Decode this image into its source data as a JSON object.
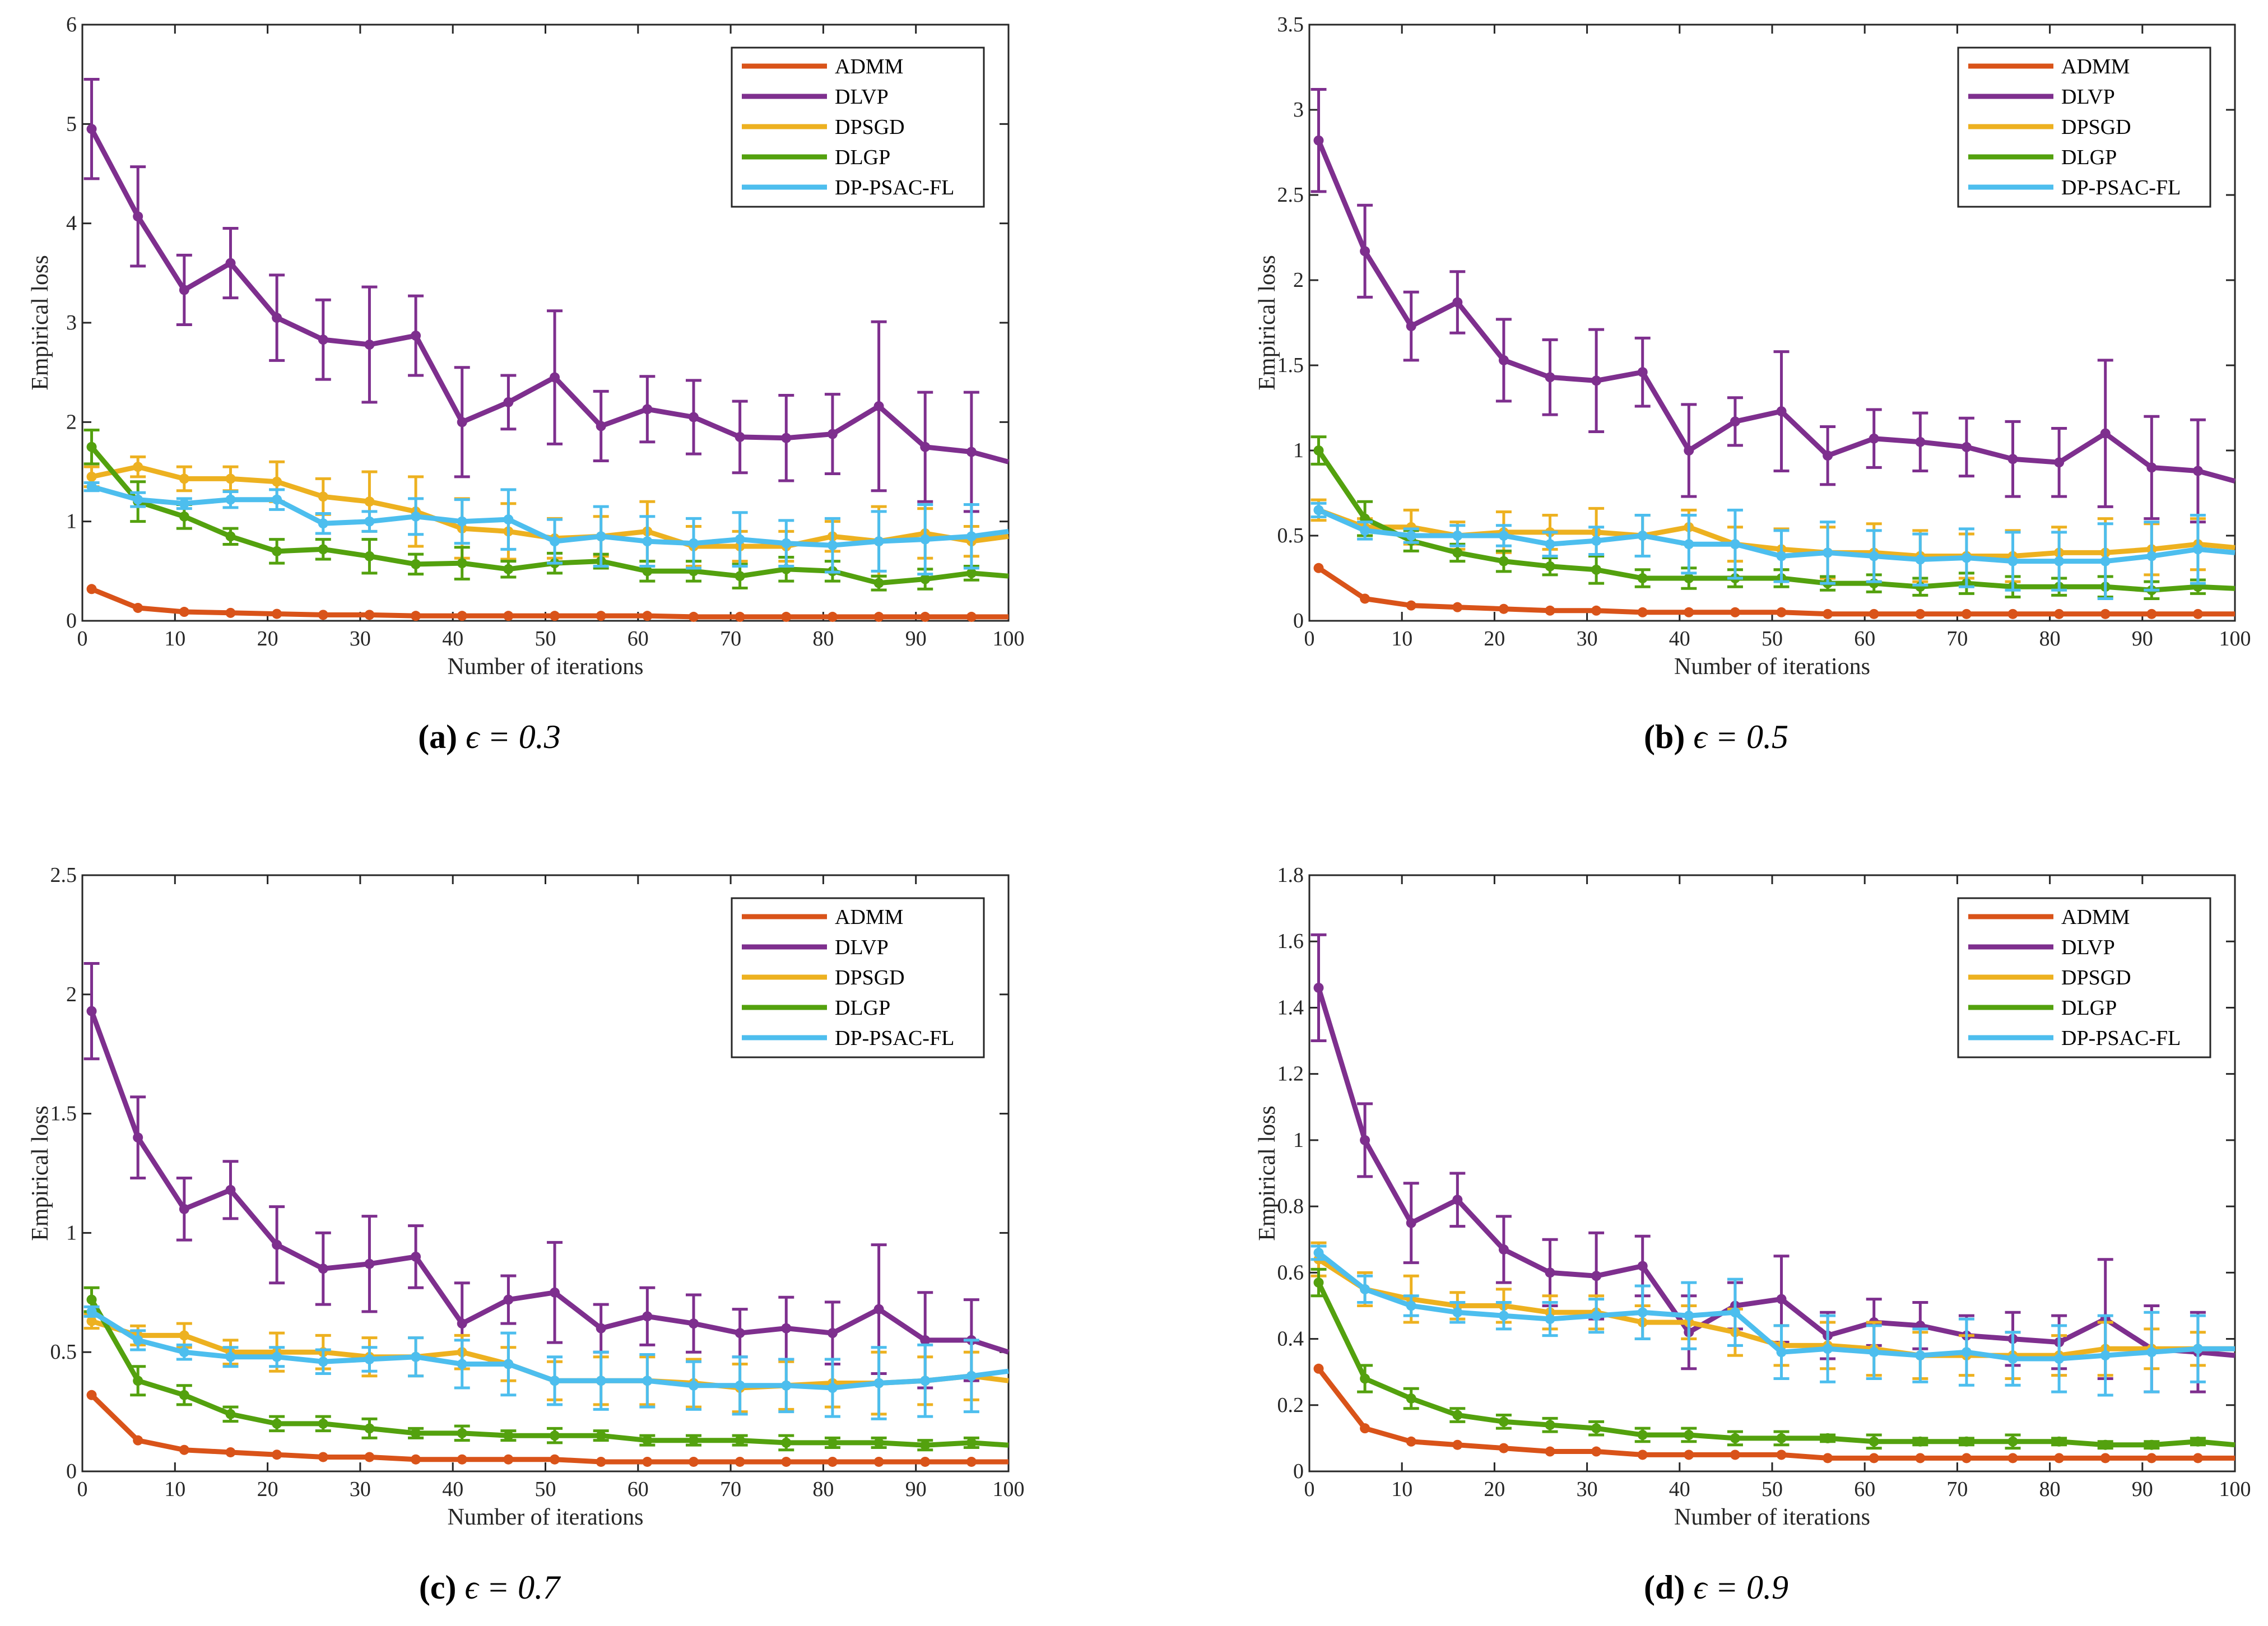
{
  "colors": {
    "ADMM": "#D95319",
    "DLVP": "#7E2F8E",
    "DPSGD": "#EDB120",
    "DLGP": "#53A10E",
    "DP-PSAC-FL": "#4DBEEE"
  },
  "chart_data": [
    {
      "type": "line",
      "panel": "a",
      "caption_label": "(a)",
      "caption_text": "ϵ = 0.3",
      "xlabel": "Number of iterations",
      "ylabel": "Empirical loss",
      "xlim": [
        0,
        100
      ],
      "ylim": [
        0,
        6
      ],
      "xticks": [
        0,
        10,
        20,
        30,
        40,
        50,
        60,
        70,
        80,
        90,
        100
      ],
      "yticks": [
        0,
        1,
        2,
        3,
        4,
        5,
        6
      ],
      "legend": "top-right",
      "x": [
        1,
        6,
        11,
        16,
        21,
        26,
        31,
        36,
        41,
        46,
        51,
        56,
        61,
        66,
        71,
        76,
        81,
        86,
        91,
        96,
        100
      ],
      "series": [
        {
          "name": "ADMM",
          "values": [
            0.32,
            0.13,
            0.09,
            0.08,
            0.07,
            0.06,
            0.06,
            0.05,
            0.05,
            0.05,
            0.05,
            0.05,
            0.05,
            0.04,
            0.04,
            0.04,
            0.04,
            0.04,
            0.04,
            0.04,
            0.04
          ],
          "err": []
        },
        {
          "name": "DLVP",
          "values": [
            4.95,
            4.07,
            3.33,
            3.6,
            3.05,
            2.83,
            2.78,
            2.87,
            2.0,
            2.2,
            2.45,
            1.96,
            2.13,
            2.05,
            1.85,
            1.84,
            1.88,
            2.16,
            1.75,
            1.7,
            1.6
          ],
          "err": [
            0.5,
            0.5,
            0.35,
            0.35,
            0.43,
            0.4,
            0.58,
            0.4,
            0.55,
            0.27,
            0.67,
            0.35,
            0.33,
            0.37,
            0.36,
            0.43,
            0.4,
            0.85,
            0.55,
            0.6
          ]
        },
        {
          "name": "DPSGD",
          "values": [
            1.45,
            1.55,
            1.43,
            1.43,
            1.4,
            1.25,
            1.2,
            1.1,
            0.93,
            0.9,
            0.83,
            0.85,
            0.9,
            0.75,
            0.75,
            0.75,
            0.85,
            0.8,
            0.88,
            0.8,
            0.85
          ],
          "err": [
            0.1,
            0.1,
            0.12,
            0.12,
            0.2,
            0.18,
            0.3,
            0.35,
            0.3,
            0.28,
            0.2,
            0.2,
            0.3,
            0.2,
            0.15,
            0.15,
            0.15,
            0.35,
            0.25,
            0.15
          ]
        },
        {
          "name": "DLGP",
          "values": [
            1.75,
            1.2,
            1.05,
            0.85,
            0.7,
            0.72,
            0.65,
            0.57,
            0.58,
            0.52,
            0.58,
            0.6,
            0.5,
            0.5,
            0.45,
            0.52,
            0.5,
            0.38,
            0.42,
            0.48,
            0.45
          ],
          "err": [
            0.17,
            0.2,
            0.12,
            0.08,
            0.12,
            0.1,
            0.17,
            0.1,
            0.16,
            0.08,
            0.1,
            0.07,
            0.1,
            0.1,
            0.12,
            0.12,
            0.1,
            0.07,
            0.1,
            0.07
          ]
        },
        {
          "name": "DP-PSAC-FL",
          "values": [
            1.35,
            1.22,
            1.18,
            1.22,
            1.22,
            0.98,
            1.0,
            1.05,
            1.0,
            1.02,
            0.8,
            0.85,
            0.8,
            0.78,
            0.82,
            0.78,
            0.76,
            0.8,
            0.82,
            0.85,
            0.9
          ],
          "err": [
            0.04,
            0.07,
            0.05,
            0.08,
            0.1,
            0.1,
            0.1,
            0.18,
            0.22,
            0.3,
            0.22,
            0.3,
            0.25,
            0.25,
            0.27,
            0.23,
            0.27,
            0.3,
            0.35,
            0.32
          ]
        }
      ]
    },
    {
      "type": "line",
      "panel": "b",
      "caption_label": "(b)",
      "caption_text": "ϵ = 0.5",
      "xlabel": "Number of iterations",
      "ylabel": "Empirical loss",
      "xlim": [
        0,
        100
      ],
      "ylim": [
        0,
        3.5
      ],
      "xticks": [
        0,
        10,
        20,
        30,
        40,
        50,
        60,
        70,
        80,
        90,
        100
      ],
      "yticks": [
        0,
        0.5,
        1,
        1.5,
        2,
        2.5,
        3,
        3.5
      ],
      "legend": "top-right",
      "x": [
        1,
        6,
        11,
        16,
        21,
        26,
        31,
        36,
        41,
        46,
        51,
        56,
        61,
        66,
        71,
        76,
        81,
        86,
        91,
        96,
        100
      ],
      "series": [
        {
          "name": "ADMM",
          "values": [
            0.31,
            0.13,
            0.09,
            0.08,
            0.07,
            0.06,
            0.06,
            0.05,
            0.05,
            0.05,
            0.05,
            0.04,
            0.04,
            0.04,
            0.04,
            0.04,
            0.04,
            0.04,
            0.04,
            0.04,
            0.04
          ],
          "err": []
        },
        {
          "name": "DLVP",
          "values": [
            2.82,
            2.17,
            1.73,
            1.87,
            1.53,
            1.43,
            1.41,
            1.46,
            1.0,
            1.17,
            1.23,
            0.97,
            1.07,
            1.05,
            1.02,
            0.95,
            0.93,
            1.1,
            0.9,
            0.88,
            0.82
          ],
          "err": [
            0.3,
            0.27,
            0.2,
            0.18,
            0.24,
            0.22,
            0.3,
            0.2,
            0.27,
            0.14,
            0.35,
            0.17,
            0.17,
            0.17,
            0.17,
            0.22,
            0.2,
            0.43,
            0.3,
            0.3
          ]
        },
        {
          "name": "DPSGD",
          "values": [
            0.65,
            0.55,
            0.55,
            0.5,
            0.52,
            0.52,
            0.52,
            0.5,
            0.55,
            0.45,
            0.42,
            0.4,
            0.4,
            0.38,
            0.38,
            0.38,
            0.4,
            0.4,
            0.42,
            0.45,
            0.43
          ],
          "err": [
            0.06,
            0.05,
            0.1,
            0.08,
            0.12,
            0.1,
            0.14,
            0.12,
            0.1,
            0.1,
            0.12,
            0.15,
            0.17,
            0.15,
            0.13,
            0.15,
            0.15,
            0.2,
            0.15,
            0.15
          ]
        },
        {
          "name": "DLGP",
          "values": [
            1.0,
            0.6,
            0.47,
            0.4,
            0.35,
            0.32,
            0.3,
            0.25,
            0.25,
            0.25,
            0.25,
            0.22,
            0.22,
            0.2,
            0.22,
            0.2,
            0.2,
            0.2,
            0.18,
            0.2,
            0.19
          ],
          "err": [
            0.08,
            0.1,
            0.06,
            0.05,
            0.06,
            0.05,
            0.08,
            0.05,
            0.06,
            0.05,
            0.05,
            0.04,
            0.05,
            0.05,
            0.06,
            0.06,
            0.05,
            0.06,
            0.05,
            0.04
          ]
        },
        {
          "name": "DP-PSAC-FL",
          "values": [
            0.65,
            0.53,
            0.5,
            0.5,
            0.5,
            0.45,
            0.47,
            0.5,
            0.45,
            0.45,
            0.38,
            0.4,
            0.38,
            0.36,
            0.37,
            0.35,
            0.35,
            0.35,
            0.38,
            0.42,
            0.4
          ],
          "err": [
            0.04,
            0.05,
            0.04,
            0.06,
            0.06,
            0.07,
            0.08,
            0.12,
            0.17,
            0.2,
            0.15,
            0.18,
            0.15,
            0.15,
            0.17,
            0.17,
            0.17,
            0.22,
            0.2,
            0.2
          ]
        }
      ]
    },
    {
      "type": "line",
      "panel": "c",
      "caption_label": "(c)",
      "caption_text": "ϵ = 0.7",
      "xlabel": "Number of iterations",
      "ylabel": "Empirical loss",
      "xlim": [
        0,
        100
      ],
      "ylim": [
        0,
        2.5
      ],
      "xticks": [
        0,
        10,
        20,
        30,
        40,
        50,
        60,
        70,
        80,
        90,
        100
      ],
      "yticks": [
        0,
        0.5,
        1,
        1.5,
        2,
        2.5
      ],
      "legend": "top-right",
      "x": [
        1,
        6,
        11,
        16,
        21,
        26,
        31,
        36,
        41,
        46,
        51,
        56,
        61,
        66,
        71,
        76,
        81,
        86,
        91,
        96,
        100
      ],
      "series": [
        {
          "name": "ADMM",
          "values": [
            0.32,
            0.13,
            0.09,
            0.08,
            0.07,
            0.06,
            0.06,
            0.05,
            0.05,
            0.05,
            0.05,
            0.04,
            0.04,
            0.04,
            0.04,
            0.04,
            0.04,
            0.04,
            0.04,
            0.04,
            0.04
          ],
          "err": []
        },
        {
          "name": "DLVP",
          "values": [
            1.93,
            1.4,
            1.1,
            1.18,
            0.95,
            0.85,
            0.87,
            0.9,
            0.62,
            0.72,
            0.75,
            0.6,
            0.65,
            0.62,
            0.58,
            0.6,
            0.58,
            0.68,
            0.55,
            0.55,
            0.5
          ],
          "err": [
            0.2,
            0.17,
            0.13,
            0.12,
            0.16,
            0.15,
            0.2,
            0.13,
            0.17,
            0.1,
            0.21,
            0.1,
            0.12,
            0.12,
            0.1,
            0.13,
            0.13,
            0.27,
            0.2,
            0.17
          ]
        },
        {
          "name": "DPSGD",
          "values": [
            0.63,
            0.57,
            0.57,
            0.5,
            0.5,
            0.5,
            0.48,
            0.48,
            0.5,
            0.45,
            0.38,
            0.38,
            0.38,
            0.37,
            0.35,
            0.36,
            0.37,
            0.37,
            0.38,
            0.4,
            0.38
          ],
          "err": [
            0.03,
            0.04,
            0.05,
            0.05,
            0.08,
            0.07,
            0.08,
            0.08,
            0.07,
            0.07,
            0.08,
            0.1,
            0.1,
            0.1,
            0.1,
            0.1,
            0.1,
            0.13,
            0.1,
            0.1
          ]
        },
        {
          "name": "DLGP",
          "values": [
            0.72,
            0.38,
            0.32,
            0.24,
            0.2,
            0.2,
            0.18,
            0.16,
            0.16,
            0.15,
            0.15,
            0.15,
            0.13,
            0.13,
            0.13,
            0.12,
            0.12,
            0.12,
            0.11,
            0.12,
            0.11
          ],
          "err": [
            0.05,
            0.06,
            0.04,
            0.03,
            0.03,
            0.03,
            0.04,
            0.02,
            0.03,
            0.02,
            0.03,
            0.02,
            0.02,
            0.02,
            0.02,
            0.03,
            0.02,
            0.02,
            0.02,
            0.02
          ]
        },
        {
          "name": "DP-PSAC-FL",
          "values": [
            0.67,
            0.55,
            0.5,
            0.48,
            0.48,
            0.46,
            0.47,
            0.48,
            0.45,
            0.45,
            0.38,
            0.38,
            0.38,
            0.36,
            0.36,
            0.36,
            0.35,
            0.37,
            0.38,
            0.4,
            0.42
          ],
          "err": [
            0.02,
            0.04,
            0.03,
            0.04,
            0.04,
            0.05,
            0.05,
            0.08,
            0.1,
            0.13,
            0.1,
            0.12,
            0.11,
            0.1,
            0.12,
            0.11,
            0.12,
            0.15,
            0.15,
            0.15
          ]
        }
      ]
    },
    {
      "type": "line",
      "panel": "d",
      "caption_label": "(d)",
      "caption_text": "ϵ = 0.9",
      "xlabel": "Number of iterations",
      "ylabel": "Empirical loss",
      "xlim": [
        0,
        100
      ],
      "ylim": [
        0,
        1.8
      ],
      "xticks": [
        0,
        10,
        20,
        30,
        40,
        50,
        60,
        70,
        80,
        90,
        100
      ],
      "yticks": [
        0,
        0.2,
        0.4,
        0.6,
        0.8,
        1,
        1.2,
        1.4,
        1.6,
        1.8
      ],
      "legend": "top-right",
      "x": [
        1,
        6,
        11,
        16,
        21,
        26,
        31,
        36,
        41,
        46,
        51,
        56,
        61,
        66,
        71,
        76,
        81,
        86,
        91,
        96,
        100
      ],
      "series": [
        {
          "name": "ADMM",
          "values": [
            0.31,
            0.13,
            0.09,
            0.08,
            0.07,
            0.06,
            0.06,
            0.05,
            0.05,
            0.05,
            0.05,
            0.04,
            0.04,
            0.04,
            0.04,
            0.04,
            0.04,
            0.04,
            0.04,
            0.04,
            0.04
          ],
          "err": []
        },
        {
          "name": "DLVP",
          "values": [
            1.46,
            1.0,
            0.75,
            0.82,
            0.67,
            0.6,
            0.59,
            0.62,
            0.42,
            0.5,
            0.52,
            0.41,
            0.45,
            0.44,
            0.41,
            0.4,
            0.39,
            0.46,
            0.37,
            0.36,
            0.35
          ],
          "err": [
            0.16,
            0.11,
            0.12,
            0.08,
            0.1,
            0.1,
            0.13,
            0.09,
            0.11,
            0.07,
            0.13,
            0.07,
            0.07,
            0.07,
            0.06,
            0.08,
            0.08,
            0.18,
            0.13,
            0.12
          ]
        },
        {
          "name": "DPSGD",
          "values": [
            0.64,
            0.55,
            0.52,
            0.5,
            0.5,
            0.48,
            0.48,
            0.45,
            0.45,
            0.42,
            0.38,
            0.38,
            0.37,
            0.35,
            0.35,
            0.35,
            0.35,
            0.37,
            0.37,
            0.37,
            0.37
          ],
          "err": [
            0.05,
            0.05,
            0.07,
            0.04,
            0.05,
            0.05,
            0.05,
            0.05,
            0.05,
            0.07,
            0.06,
            0.07,
            0.08,
            0.07,
            0.06,
            0.07,
            0.06,
            0.08,
            0.06,
            0.05
          ]
        },
        {
          "name": "DLGP",
          "values": [
            0.57,
            0.28,
            0.22,
            0.17,
            0.15,
            0.14,
            0.13,
            0.11,
            0.11,
            0.1,
            0.1,
            0.1,
            0.09,
            0.09,
            0.09,
            0.09,
            0.09,
            0.08,
            0.08,
            0.09,
            0.08
          ],
          "err": [
            0.04,
            0.04,
            0.03,
            0.02,
            0.02,
            0.02,
            0.02,
            0.02,
            0.02,
            0.02,
            0.02,
            0.01,
            0.02,
            0.01,
            0.01,
            0.02,
            0.01,
            0.01,
            0.01,
            0.01
          ]
        },
        {
          "name": "DP-PSAC-FL",
          "values": [
            0.66,
            0.55,
            0.5,
            0.48,
            0.47,
            0.46,
            0.47,
            0.48,
            0.47,
            0.48,
            0.36,
            0.37,
            0.36,
            0.35,
            0.36,
            0.34,
            0.34,
            0.35,
            0.36,
            0.37,
            0.37
          ],
          "err": [
            0.02,
            0.04,
            0.03,
            0.03,
            0.04,
            0.05,
            0.05,
            0.08,
            0.1,
            0.1,
            0.08,
            0.1,
            0.08,
            0.08,
            0.1,
            0.08,
            0.1,
            0.12,
            0.12,
            0.1
          ]
        }
      ]
    }
  ]
}
